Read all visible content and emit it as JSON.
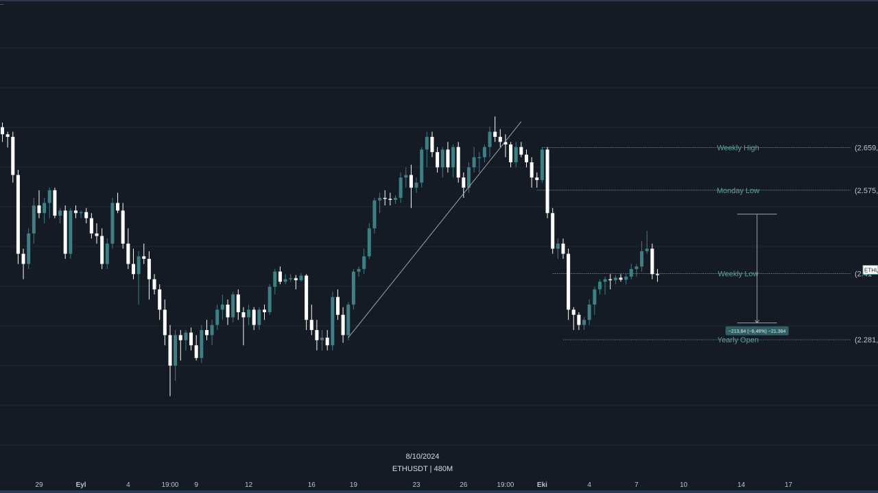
{
  "chart_data": {
    "type": "candlestick",
    "symbol": "ETHUSDT",
    "footer_date": "8/10/2024",
    "footer_symbol": "ETHUSDT | 480M",
    "x_ticks": [
      {
        "i": 7,
        "label": "29"
      },
      {
        "i": 15,
        "label": "Eyl",
        "bold": true
      },
      {
        "i": 24,
        "label": "4"
      },
      {
        "i": 32,
        "label": "19:00"
      },
      {
        "i": 37,
        "label": "9"
      },
      {
        "i": 47,
        "label": "12"
      },
      {
        "i": 59,
        "label": "16"
      },
      {
        "i": 67,
        "label": "19"
      },
      {
        "i": 79,
        "label": "23"
      },
      {
        "i": 88,
        "label": "26"
      },
      {
        "i": 96,
        "label": "19:00"
      },
      {
        "i": 103,
        "label": "Eki",
        "bold": true
      },
      {
        "i": 112,
        "label": "4"
      },
      {
        "i": 121,
        "label": "7"
      },
      {
        "i": 130,
        "label": "10"
      },
      {
        "i": 141,
        "label": "14"
      },
      {
        "i": 150,
        "label": "17"
      }
    ],
    "levels": [
      {
        "name": "Weekly High",
        "price_label": "(2.659,",
        "value": 2659,
        "from_i": 103
      },
      {
        "name": "Monday Low",
        "price_label": "(2.575,",
        "value": 2575,
        "from_i": 102
      },
      {
        "name": "Weekly Low",
        "price_label": "(2.41",
        "value": 2411,
        "from_i": 105
      },
      {
        "name": "Yearly Open",
        "price_label": "(2.281,",
        "value": 2281,
        "from_i": 107
      }
    ],
    "measure": {
      "label": "−213,84 (−8,46%) −21.384",
      "from": 2528,
      "to": 2314,
      "at_i": 144
    },
    "trendline": {
      "from_i": 66,
      "from_v": 2285,
      "to_i": 99,
      "to_v": 2710
    },
    "last_price_tag": "ETHU",
    "candles": [
      [
        2699,
        2708,
        2670,
        2685
      ],
      [
        2685,
        2690,
        2659,
        2680
      ],
      [
        2680,
        2690,
        2590,
        2605
      ],
      [
        2605,
        2615,
        2430,
        2450
      ],
      [
        2450,
        2460,
        2400,
        2430
      ],
      [
        2430,
        2500,
        2420,
        2490
      ],
      [
        2490,
        2560,
        2470,
        2545
      ],
      [
        2545,
        2575,
        2520,
        2530
      ],
      [
        2530,
        2560,
        2510,
        2550
      ],
      [
        2550,
        2580,
        2520,
        2575
      ],
      [
        2575,
        2580,
        2520,
        2525
      ],
      [
        2525,
        2540,
        2510,
        2535
      ],
      [
        2535,
        2545,
        2440,
        2450
      ],
      [
        2450,
        2540,
        2440,
        2535
      ],
      [
        2535,
        2545,
        2520,
        2530
      ],
      [
        2530,
        2535,
        2520,
        2532
      ],
      [
        2532,
        2540,
        2510,
        2520
      ],
      [
        2520,
        2530,
        2480,
        2490
      ],
      [
        2490,
        2510,
        2470,
        2485
      ],
      [
        2485,
        2500,
        2420,
        2430
      ],
      [
        2430,
        2480,
        2420,
        2470
      ],
      [
        2470,
        2560,
        2460,
        2550
      ],
      [
        2550,
        2570,
        2530,
        2535
      ],
      [
        2535,
        2550,
        2460,
        2470
      ],
      [
        2470,
        2500,
        2420,
        2430
      ],
      [
        2430,
        2460,
        2400,
        2410
      ],
      [
        2410,
        2455,
        2350,
        2445
      ],
      [
        2445,
        2470,
        2430,
        2440
      ],
      [
        2440,
        2455,
        2360,
        2400
      ],
      [
        2400,
        2410,
        2370,
        2380
      ],
      [
        2380,
        2390,
        2320,
        2340
      ],
      [
        2340,
        2360,
        2270,
        2290
      ],
      [
        2290,
        2310,
        2170,
        2230
      ],
      [
        2230,
        2300,
        2200,
        2290
      ],
      [
        2290,
        2300,
        2240,
        2280
      ],
      [
        2280,
        2300,
        2260,
        2295
      ],
      [
        2295,
        2305,
        2260,
        2270
      ],
      [
        2270,
        2290,
        2240,
        2245
      ],
      [
        2245,
        2310,
        2235,
        2300
      ],
      [
        2300,
        2320,
        2280,
        2290
      ],
      [
        2290,
        2320,
        2270,
        2310
      ],
      [
        2310,
        2350,
        2300,
        2340
      ],
      [
        2340,
        2370,
        2320,
        2350
      ],
      [
        2350,
        2360,
        2310,
        2325
      ],
      [
        2325,
        2375,
        2315,
        2370
      ],
      [
        2370,
        2380,
        2320,
        2335
      ],
      [
        2335,
        2345,
        2270,
        2325
      ],
      [
        2325,
        2350,
        2310,
        2340
      ],
      [
        2340,
        2345,
        2300,
        2310
      ],
      [
        2310,
        2345,
        2300,
        2340
      ],
      [
        2340,
        2350,
        2320,
        2335
      ],
      [
        2335,
        2390,
        2330,
        2385
      ],
      [
        2385,
        2420,
        2370,
        2415
      ],
      [
        2415,
        2425,
        2390,
        2395
      ],
      [
        2395,
        2410,
        2390,
        2400
      ],
      [
        2400,
        2410,
        2395,
        2402
      ],
      [
        2402,
        2408,
        2380,
        2398
      ],
      [
        2398,
        2412,
        2395,
        2407
      ],
      [
        2407,
        2410,
        2300,
        2320
      ],
      [
        2320,
        2350,
        2290,
        2300
      ],
      [
        2300,
        2320,
        2260,
        2280
      ],
      [
        2280,
        2300,
        2260,
        2285
      ],
      [
        2285,
        2300,
        2260,
        2270
      ],
      [
        2270,
        2375,
        2260,
        2365
      ],
      [
        2365,
        2380,
        2320,
        2330
      ],
      [
        2330,
        2345,
        2275,
        2290
      ],
      [
        2290,
        2355,
        2280,
        2350
      ],
      [
        2350,
        2420,
        2340,
        2415
      ],
      [
        2415,
        2425,
        2405,
        2420
      ],
      [
        2420,
        2460,
        2410,
        2445
      ],
      [
        2445,
        2510,
        2440,
        2500
      ],
      [
        2500,
        2560,
        2490,
        2555
      ],
      [
        2555,
        2570,
        2530,
        2560
      ],
      [
        2560,
        2575,
        2545,
        2558
      ],
      [
        2558,
        2570,
        2545,
        2556
      ],
      [
        2556,
        2565,
        2548,
        2560
      ],
      [
        2560,
        2610,
        2550,
        2600
      ],
      [
        2600,
        2620,
        2580,
        2605
      ],
      [
        2605,
        2625,
        2540,
        2580
      ],
      [
        2580,
        2600,
        2570,
        2590
      ],
      [
        2590,
        2660,
        2580,
        2655
      ],
      [
        2655,
        2690,
        2620,
        2680
      ],
      [
        2680,
        2690,
        2640,
        2650
      ],
      [
        2650,
        2660,
        2610,
        2620
      ],
      [
        2620,
        2660,
        2600,
        2655
      ],
      [
        2655,
        2670,
        2610,
        2620
      ],
      [
        2620,
        2665,
        2600,
        2660
      ],
      [
        2660,
        2670,
        2590,
        2600
      ],
      [
        2600,
        2610,
        2560,
        2580
      ],
      [
        2580,
        2630,
        2570,
        2620
      ],
      [
        2620,
        2660,
        2610,
        2640
      ],
      [
        2640,
        2650,
        2610,
        2640
      ],
      [
        2640,
        2665,
        2630,
        2660
      ],
      [
        2660,
        2700,
        2640,
        2690
      ],
      [
        2690,
        2720,
        2670,
        2680
      ],
      [
        2680,
        2695,
        2660,
        2670
      ],
      [
        2670,
        2685,
        2640,
        2665
      ],
      [
        2665,
        2670,
        2620,
        2630
      ],
      [
        2630,
        2670,
        2620,
        2660
      ],
      [
        2660,
        2670,
        2640,
        2645
      ],
      [
        2645,
        2655,
        2620,
        2630
      ],
      [
        2630,
        2640,
        2580,
        2600
      ],
      [
        2600,
        2610,
        2580,
        2595
      ],
      [
        2595,
        2660,
        2590,
        2655
      ],
      [
        2655,
        2660,
        2520,
        2530
      ],
      [
        2530,
        2540,
        2450,
        2460
      ],
      [
        2460,
        2480,
        2440,
        2470
      ],
      [
        2470,
        2480,
        2440,
        2450
      ],
      [
        2450,
        2460,
        2320,
        2340
      ],
      [
        2340,
        2345,
        2300,
        2330
      ],
      [
        2330,
        2335,
        2300,
        2310
      ],
      [
        2310,
        2325,
        2300,
        2320
      ],
      [
        2320,
        2360,
        2310,
        2350
      ],
      [
        2350,
        2385,
        2330,
        2380
      ],
      [
        2380,
        2400,
        2370,
        2395
      ],
      [
        2395,
        2405,
        2370,
        2400
      ],
      [
        2400,
        2410,
        2380,
        2398
      ],
      [
        2398,
        2408,
        2390,
        2403
      ],
      [
        2403,
        2410,
        2395,
        2399
      ],
      [
        2399,
        2410,
        2390,
        2405
      ],
      [
        2405,
        2430,
        2400,
        2420
      ],
      [
        2420,
        2430,
        2405,
        2425
      ],
      [
        2425,
        2475,
        2415,
        2455
      ],
      [
        2455,
        2495,
        2450,
        2460
      ],
      [
        2460,
        2470,
        2400,
        2410
      ],
      [
        2410,
        2420,
        2395,
        2409
      ]
    ]
  },
  "colors": {
    "background": "#151b24",
    "bull": "#3d7f84",
    "bear": "#ffffff",
    "grid": "#1d2833",
    "level_line": "#5a7e80",
    "level_text": "#5f9ea0",
    "axis_text": "#b9c4cc",
    "footer_text": "#d6dce2",
    "trendline": "#9aa6ae",
    "measure_label_bg": "#2d5f63"
  }
}
